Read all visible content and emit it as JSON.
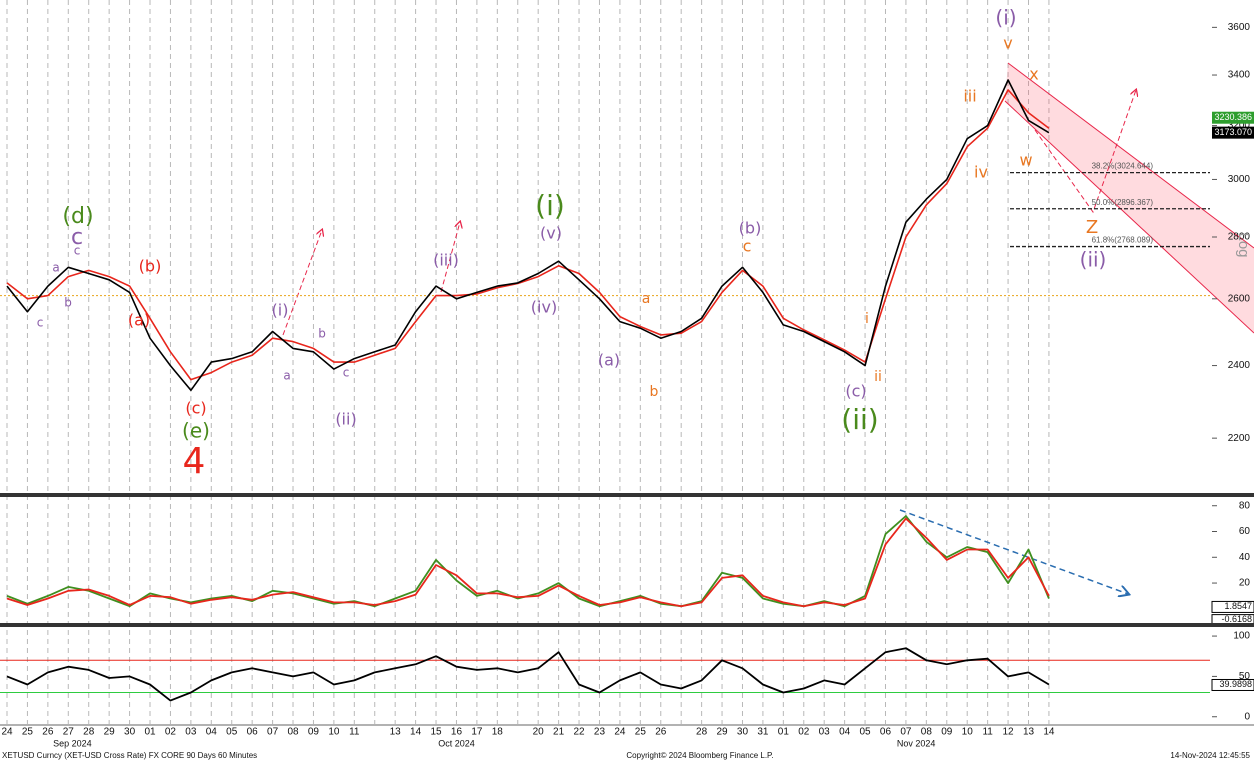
{
  "chart_data": [
    {
      "type": "line",
      "log_scale": true,
      "y_axis_label": "Log",
      "categories": [
        "24",
        "25",
        "26",
        "27",
        "28",
        "29",
        "30",
        "01",
        "02",
        "03",
        "04",
        "05",
        "06",
        "07",
        "08",
        "09",
        "10",
        "11",
        null,
        "13",
        "14",
        "15",
        "16",
        "17",
        "18",
        null,
        "20",
        "21",
        "22",
        "23",
        "24",
        "25",
        "26",
        null,
        "28",
        "29",
        "30",
        "31",
        "01",
        "02",
        "03",
        "04",
        "05",
        "06",
        "07",
        "08",
        "09",
        "10",
        "11",
        "12",
        "13",
        "14"
      ],
      "month_labels": [
        "Sep 2024",
        "Oct 2024",
        "Nov 2024"
      ],
      "ylim": [
        2060,
        3720
      ],
      "yticks": [
        2200,
        2400,
        2600,
        2800,
        3000,
        3200,
        3400,
        3600
      ],
      "series": [
        {
          "color": "#e8261c",
          "values": [
            2650,
            2600,
            2610,
            2670,
            2690,
            2670,
            2640,
            2540,
            2440,
            2360,
            2380,
            2410,
            2430,
            2480,
            2470,
            2450,
            2410,
            2410,
            2430,
            2450,
            2530,
            2610,
            2610,
            2615,
            2635,
            2648,
            2670,
            2705,
            2680,
            2620,
            2545,
            2515,
            2490,
            2495,
            2530,
            2620,
            2690,
            2640,
            2540,
            2505,
            2475,
            2445,
            2410,
            2600,
            2800,
            2910,
            2985,
            3120,
            3190,
            3340,
            3250,
            3190
          ]
        },
        {
          "color": "#000000",
          "values": [
            2640,
            2560,
            2640,
            2700,
            2680,
            2660,
            2620,
            2480,
            2400,
            2330,
            2410,
            2420,
            2440,
            2500,
            2450,
            2440,
            2390,
            2420,
            2440,
            2460,
            2560,
            2640,
            2600,
            2620,
            2640,
            2650,
            2680,
            2720,
            2660,
            2600,
            2530,
            2510,
            2480,
            2500,
            2540,
            2640,
            2700,
            2620,
            2520,
            2500,
            2470,
            2440,
            2400,
            2640,
            2850,
            2930,
            3000,
            3150,
            3200,
            3380,
            3220,
            3173.07
          ]
        }
      ],
      "reference_line": {
        "value": 2610,
        "color": "#e8a317"
      },
      "fib_levels": [
        {
          "value": 3024.644,
          "label": "38.2%(3024.644)"
        },
        {
          "value": 2896.367,
          "label": "50.0%(2896.367)"
        },
        {
          "value": 2768.089,
          "label": "61.8%(2768.089)"
        }
      ],
      "price_tags": [
        {
          "value": 3230.386,
          "color": "#2e9e2e"
        },
        {
          "value": 3173.07,
          "label": "3173.070",
          "color": "#000000"
        }
      ],
      "annotations": [
        "(d)",
        "c",
        "a",
        "c",
        "b",
        "c",
        "(b)",
        "(a)",
        "(c)",
        "(e)",
        "4",
        "(i)",
        "a",
        "b",
        "c",
        "(ii)",
        "(iii)",
        "(i)",
        "(v)",
        "(iv)",
        "(a)",
        "a",
        "b",
        "(b)",
        "c",
        "(c)",
        "(ii)",
        "i",
        "ii",
        "iii",
        "iv",
        "(i)",
        "v",
        "x",
        "w",
        "Z",
        "(ii)"
      ]
    },
    {
      "type": "line",
      "ylim": [
        -11,
        86
      ],
      "yticks": [
        20,
        40,
        60,
        80
      ],
      "series": [
        {
          "color": "#3f8f1f",
          "values": [
            10,
            4,
            10,
            17,
            14,
            8,
            2,
            12,
            8,
            5,
            8,
            10,
            6,
            14,
            12,
            8,
            4,
            6,
            2,
            8,
            14,
            38,
            22,
            10,
            14,
            8,
            12,
            20,
            8,
            2,
            6,
            10,
            4,
            2,
            6,
            28,
            24,
            8,
            4,
            2,
            6,
            2,
            10,
            58,
            72,
            52,
            40,
            48,
            44,
            20,
            46,
            8
          ]
        },
        {
          "color": "#e8261c",
          "values": [
            8,
            3,
            8,
            14,
            15,
            10,
            3,
            10,
            9,
            4,
            7,
            9,
            7,
            11,
            13,
            9,
            5,
            5,
            3,
            6,
            11,
            34,
            26,
            12,
            12,
            9,
            10,
            18,
            10,
            3,
            5,
            9,
            5,
            2,
            5,
            24,
            26,
            10,
            5,
            2,
            5,
            3,
            8,
            50,
            70,
            55,
            38,
            46,
            46,
            24,
            40,
            10
          ]
        }
      ],
      "tags": [
        1.8547,
        -0.6168
      ]
    },
    {
      "type": "line",
      "ylim": [
        -9,
        110
      ],
      "yticks": [
        0,
        50,
        100
      ],
      "hlines": [
        {
          "value": 70,
          "color": "#e8261c"
        },
        {
          "value": 30,
          "color": "#2ecc40"
        }
      ],
      "series": [
        {
          "color": "#000000",
          "values": [
            50,
            40,
            55,
            62,
            58,
            48,
            50,
            40,
            20,
            30,
            45,
            55,
            60,
            55,
            50,
            55,
            40,
            45,
            55,
            60,
            65,
            75,
            62,
            58,
            60,
            55,
            60,
            80,
            40,
            30,
            45,
            55,
            40,
            35,
            45,
            70,
            60,
            40,
            30,
            35,
            45,
            40,
            60,
            80,
            85,
            70,
            65,
            70,
            72,
            50,
            55,
            39.9898
          ]
        }
      ],
      "tags": [
        39.9898
      ]
    }
  ],
  "footer": {
    "left": "XETUSD Curncy (XET-USD Cross Rate) FX CORE 90 Days 60 Minutes",
    "center": "Copyright© 2024 Bloomberg Finance L.P.",
    "right": "14-Nov-2024 12:45:55"
  }
}
